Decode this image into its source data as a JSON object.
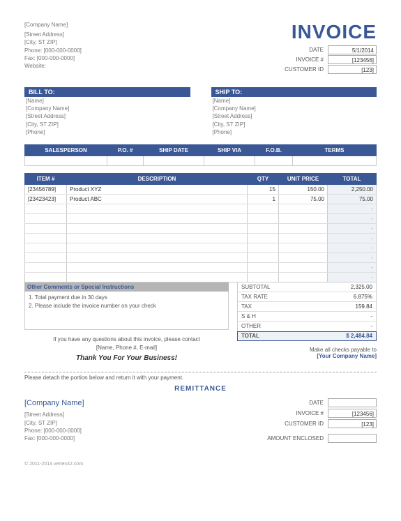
{
  "header": {
    "company_name": "[Company Name]",
    "street": "[Street Address]",
    "city_st_zip": "[City, ST  ZIP]",
    "phone_label": "Phone:",
    "phone": "[000-000-0000]",
    "fax_label": "Fax:",
    "fax": "[000-000-0000]",
    "website_label": "Website:",
    "invoice_title": "INVOICE",
    "meta": {
      "date_label": "DATE",
      "date": "5/1/2014",
      "invoice_no_label": "INVOICE #",
      "invoice_no": "[123456]",
      "customer_id_label": "CUSTOMER ID",
      "customer_id": "[123]"
    }
  },
  "bill_to": {
    "header": "BILL TO:",
    "name": "[Name]",
    "company": "[Company Name]",
    "street": "[Street Address]",
    "city_st_zip": "[City, ST  ZIP]",
    "phone": "[Phone]"
  },
  "ship_to": {
    "header": "SHIP TO:",
    "name": "[Name]",
    "company": "[Company Name]",
    "street": "[Street Address]",
    "city_st_zip": "[City, ST  ZIP]",
    "phone": "[Phone]"
  },
  "order_cols": {
    "salesperson": "SALESPERSON",
    "po": "P.O. #",
    "ship_date": "SHIP DATE",
    "ship_via": "SHIP VIA",
    "fob": "F.O.B.",
    "terms": "TERMS"
  },
  "item_cols": {
    "item": "ITEM #",
    "desc": "DESCRIPTION",
    "qty": "QTY",
    "price": "UNIT PRICE",
    "total": "TOTAL"
  },
  "items": [
    {
      "item": "[23456789]",
      "desc": "Product XYZ",
      "qty": "15",
      "price": "150.00",
      "total": "2,250.00"
    },
    {
      "item": "[23423423]",
      "desc": "Product ABC",
      "qty": "1",
      "price": "75.00",
      "total": "75.00"
    }
  ],
  "comments": {
    "header": "Other Comments or Special Instructions",
    "line1": "1. Total payment due in 30 days",
    "line2": "2. Please include the invoice number on your check"
  },
  "totals": {
    "subtotal_label": "SUBTOTAL",
    "subtotal": "2,325.00",
    "taxrate_label": "TAX RATE",
    "taxrate": "6.875%",
    "tax_label": "TAX",
    "tax": "159.84",
    "sh_label": "S & H",
    "sh": "-",
    "other_label": "OTHER",
    "other": "-",
    "total_label": "TOTAL",
    "total": "$     2,484.84"
  },
  "footer": {
    "contact1": "If you have any questions about this invoice, please contact",
    "contact2": "[Name, Phone #, E-mail]",
    "thanks": "Thank You For Your Business!",
    "payable_label": "Make all checks payable to",
    "payable_name": "[Your Company Name]"
  },
  "remittance": {
    "detach": "Please detach the portion below and return it with your payment.",
    "title": "REMITTANCE",
    "company_name": "[Company Name]",
    "street": "[Street Address]",
    "city_st_zip": "[City, ST  ZIP]",
    "phone_label": "Phone:",
    "phone": "[000-000-0000]",
    "fax_label": "Fax:",
    "fax": "[000-000-0000]",
    "date_label": "DATE",
    "invoice_no_label": "INVOICE #",
    "invoice_no": "[123456]",
    "customer_id_label": "CUSTOMER ID",
    "customer_id": "[123]",
    "amount_label": "AMOUNT ENCLOSED"
  },
  "copyright": "© 2011-2014 vertex42.com"
}
